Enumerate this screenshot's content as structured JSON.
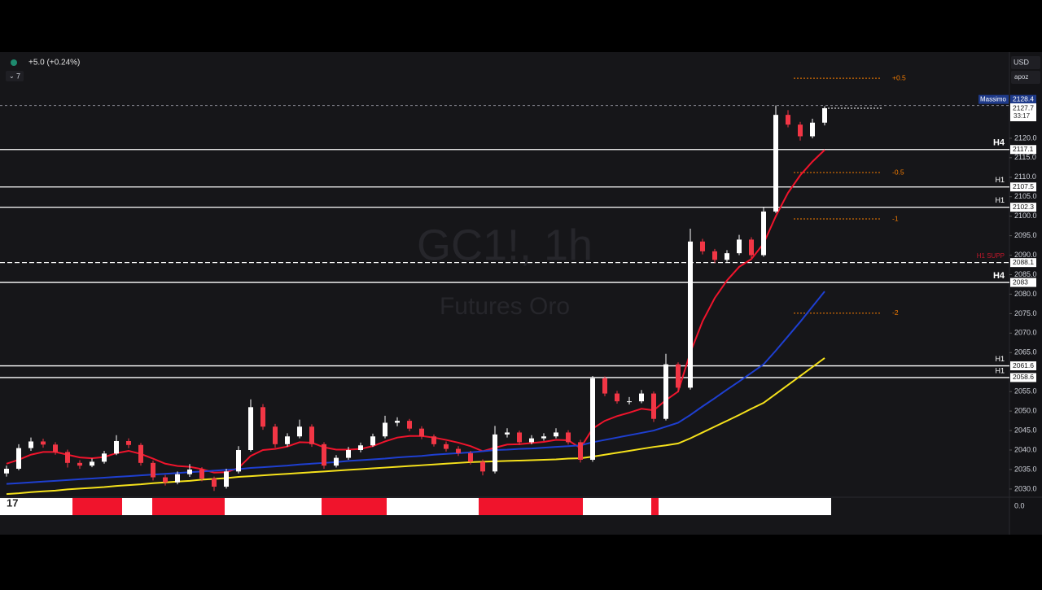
{
  "header": {
    "change": "+5.0 (+0.24%)",
    "interval_count": "7",
    "currency": "USD",
    "account": "apoz"
  },
  "chart_data": {
    "type": "candlestick",
    "title": "GC1!, 1h",
    "subtitle": "Futures Oro",
    "up_color": "#ffffff",
    "down_color": "#f23645",
    "ohlc": [
      [
        2034.0,
        2036.0,
        2033.2,
        2035.2
      ],
      [
        2035.2,
        2041.5,
        2034.8,
        2040.5
      ],
      [
        2040.5,
        2043.2,
        2039.8,
        2042.2
      ],
      [
        2042.2,
        2042.9,
        2040.6,
        2041.4
      ],
      [
        2041.4,
        2042.0,
        2038.8,
        2039.5
      ],
      [
        2039.5,
        2040.1,
        2035.5,
        2036.7
      ],
      [
        2036.7,
        2037.4,
        2035.2,
        2036.0
      ],
      [
        2036.0,
        2037.8,
        2035.6,
        2037.0
      ],
      [
        2037.0,
        2039.8,
        2036.5,
        2039.1
      ],
      [
        2039.1,
        2043.8,
        2038.7,
        2042.3
      ],
      [
        2042.3,
        2043.0,
        2040.5,
        2041.3
      ],
      [
        2041.3,
        2041.8,
        2036.0,
        2036.7
      ],
      [
        2036.7,
        2037.3,
        2032.2,
        2033.0
      ],
      [
        2033.0,
        2033.6,
        2030.9,
        2031.7
      ],
      [
        2031.7,
        2034.5,
        2031.2,
        2033.8
      ],
      [
        2033.8,
        2036.4,
        2033.1,
        2035.0
      ],
      [
        2035.0,
        2035.6,
        2032.0,
        2032.7
      ],
      [
        2032.7,
        2033.2,
        2029.5,
        2030.6
      ],
      [
        2030.6,
        2035.2,
        2030.1,
        2034.5
      ],
      [
        2034.5,
        2041.0,
        2034.0,
        2040.0
      ],
      [
        2040.0,
        2053.0,
        2039.6,
        2051.0
      ],
      [
        2051.0,
        2051.8,
        2045.2,
        2046.0
      ],
      [
        2046.0,
        2046.7,
        2040.6,
        2041.5
      ],
      [
        2041.5,
        2044.3,
        2040.9,
        2043.5
      ],
      [
        2043.5,
        2047.8,
        2043.0,
        2046.0
      ],
      [
        2046.0,
        2046.6,
        2040.8,
        2041.5
      ],
      [
        2041.5,
        2042.0,
        2035.2,
        2036.0
      ],
      [
        2036.0,
        2038.7,
        2035.5,
        2038.0
      ],
      [
        2038.0,
        2040.8,
        2037.5,
        2040.0
      ],
      [
        2040.0,
        2041.9,
        2039.4,
        2041.2
      ],
      [
        2041.2,
        2044.2,
        2040.8,
        2043.5
      ],
      [
        2043.5,
        2048.8,
        2043.0,
        2047.0
      ],
      [
        2047.0,
        2048.4,
        2046.1,
        2047.5
      ],
      [
        2047.5,
        2048.0,
        2044.8,
        2045.5
      ],
      [
        2045.5,
        2046.1,
        2042.8,
        2043.5
      ],
      [
        2043.5,
        2044.0,
        2040.9,
        2041.5
      ],
      [
        2041.5,
        2042.2,
        2039.6,
        2040.3
      ],
      [
        2040.3,
        2041.0,
        2038.5,
        2039.2
      ],
      [
        2039.2,
        2039.8,
        2036.3,
        2037.0
      ],
      [
        2037.0,
        2037.6,
        2033.5,
        2034.5
      ],
      [
        2034.5,
        2046.2,
        2034.0,
        2044.0
      ],
      [
        2044.0,
        2045.6,
        2043.2,
        2044.5
      ],
      [
        2044.5,
        2045.0,
        2041.3,
        2042.0
      ],
      [
        2042.0,
        2043.8,
        2041.5,
        2043.0
      ],
      [
        2043.0,
        2044.3,
        2042.4,
        2043.5
      ],
      [
        2043.5,
        2045.6,
        2043.0,
        2044.5
      ],
      [
        2044.5,
        2045.1,
        2041.4,
        2042.0
      ],
      [
        2042.0,
        2042.6,
        2036.8,
        2037.5
      ],
      [
        2037.5,
        2059.0,
        2037.0,
        2058.4
      ],
      [
        2058.4,
        2058.9,
        2053.8,
        2054.5
      ],
      [
        2054.5,
        2055.2,
        2051.9,
        2052.5
      ],
      [
        2052.5,
        2053.6,
        2051.7,
        2052.5
      ],
      [
        2052.5,
        2055.4,
        2052.0,
        2054.5
      ],
      [
        2054.5,
        2055.0,
        2047.2,
        2048.0
      ],
      [
        2048.0,
        2064.7,
        2047.6,
        2062.0
      ],
      [
        2062.0,
        2062.5,
        2054.8,
        2056.0
      ],
      [
        2056.0,
        2096.8,
        2055.5,
        2093.5
      ],
      [
        2093.5,
        2094.2,
        2090.2,
        2091.0
      ],
      [
        2091.0,
        2091.6,
        2088.0,
        2088.8
      ],
      [
        2088.8,
        2091.3,
        2088.3,
        2090.5
      ],
      [
        2090.5,
        2095.2,
        2090.0,
        2094.0
      ],
      [
        2094.0,
        2094.6,
        2089.2,
        2090.0
      ],
      [
        2090.0,
        2102.4,
        2089.6,
        2101.2
      ],
      [
        2101.2,
        2128.4,
        2100.8,
        2126.0
      ],
      [
        2126.0,
        2127.2,
        2122.8,
        2123.5
      ],
      [
        2123.5,
        2124.2,
        2119.4,
        2120.5
      ],
      [
        2120.5,
        2125.0,
        2120.0,
        2124.0
      ],
      [
        2124.0,
        2128.2,
        2123.3,
        2127.7
      ]
    ],
    "series": [
      {
        "color": "#f0142c",
        "values": [
          2036.5,
          2037.5,
          2038.8,
          2039.5,
          2039.5,
          2038.8,
          2038.1,
          2037.9,
          2038.2,
          2039.2,
          2039.8,
          2039.0,
          2037.8,
          2036.5,
          2035.9,
          2035.7,
          2035.1,
          2034.2,
          2034.3,
          2035.4,
          2038.5,
          2040.0,
          2040.3,
          2040.9,
          2042.0,
          2041.9,
          2040.7,
          2040.1,
          2040.1,
          2040.3,
          2041.0,
          2042.2,
          2043.2,
          2043.6,
          2043.6,
          2043.2,
          2042.6,
          2041.9,
          2041.0,
          2039.7,
          2040.6,
          2041.4,
          2041.5,
          2041.8,
          2042.1,
          2042.6,
          2042.5,
          2040.5,
          2045.5,
          2047.5,
          2048.7,
          2049.6,
          2050.6,
          2050.2,
          2052.8,
          2055.0,
          2065.0,
          2073.0,
          2079.0,
          2083.5,
          2087.0,
          2089.0,
          2093.0,
          2100.0,
          2106.0,
          2110.5,
          2114.0,
          2117.0
        ]
      },
      {
        "color": "#1e3fd0",
        "values": [
          2031.3,
          2031.5,
          2031.7,
          2031.9,
          2032.1,
          2032.3,
          2032.5,
          2032.7,
          2032.9,
          2033.1,
          2033.3,
          2033.5,
          2033.7,
          2033.9,
          2034.1,
          2034.3,
          2034.5,
          2034.7,
          2034.9,
          2035.1,
          2035.4,
          2035.6,
          2035.8,
          2036.0,
          2036.3,
          2036.5,
          2036.7,
          2036.9,
          2037.2,
          2037.4,
          2037.6,
          2037.8,
          2038.1,
          2038.3,
          2038.5,
          2038.8,
          2039.0,
          2039.2,
          2039.4,
          2039.7,
          2040.0,
          2040.1,
          2040.3,
          2040.4,
          2040.6,
          2040.8,
          2041.0,
          2041.2,
          2042.0,
          2042.6,
          2043.2,
          2043.8,
          2044.4,
          2045.0,
          2046.0,
          2047.0,
          2049.0,
          2051.2,
          2053.3,
          2055.5,
          2057.6,
          2059.8,
          2062.0,
          2065.5,
          2069.2,
          2072.9,
          2076.8,
          2080.7
        ]
      },
      {
        "color": "#f5e11b",
        "values": [
          2028.7,
          2028.9,
          2029.2,
          2029.4,
          2029.6,
          2029.9,
          2030.1,
          2030.3,
          2030.5,
          2030.8,
          2031.0,
          2031.2,
          2031.5,
          2031.7,
          2031.9,
          2032.1,
          2032.4,
          2032.6,
          2032.8,
          2033.1,
          2033.3,
          2033.5,
          2033.7,
          2033.9,
          2034.1,
          2034.3,
          2034.5,
          2034.7,
          2034.9,
          2035.1,
          2035.3,
          2035.5,
          2035.7,
          2035.9,
          2036.1,
          2036.3,
          2036.5,
          2036.7,
          2036.9,
          2037.0,
          2037.1,
          2037.2,
          2037.3,
          2037.4,
          2037.5,
          2037.6,
          2037.8,
          2037.9,
          2038.3,
          2038.8,
          2039.3,
          2039.8,
          2040.3,
          2040.8,
          2041.2,
          2041.7,
          2043.0,
          2044.5,
          2046.0,
          2047.5,
          2049.0,
          2050.6,
          2052.1,
          2054.4,
          2056.7,
          2059.0,
          2061.3,
          2063.6
        ]
      }
    ],
    "ylim": [
      2028.1,
      2141.9
    ],
    "yticks": [
      {
        "value": 2030,
        "label": "2030.0"
      },
      {
        "value": 2035,
        "label": "2035.0"
      },
      {
        "value": 2040,
        "label": "2040.0"
      },
      {
        "value": 2045,
        "label": "2045.0"
      },
      {
        "value": 2050,
        "label": "2050.0"
      },
      {
        "value": 2055,
        "label": "2055.0"
      },
      {
        "value": 2065,
        "label": "2065.0"
      },
      {
        "value": 2070,
        "label": "2070.0"
      },
      {
        "value": 2075,
        "label": "2075.0"
      },
      {
        "value": 2080,
        "label": "2080.0"
      },
      {
        "value": 2085,
        "label": "2085.0"
      },
      {
        "value": 2090,
        "label": "2090.0"
      },
      {
        "value": 2095,
        "label": "2095.0"
      },
      {
        "value": 2100,
        "label": "2100.0"
      },
      {
        "value": 2105,
        "label": "2105.0"
      },
      {
        "value": 2110,
        "label": "2110.0"
      },
      {
        "value": 2115,
        "label": "2115.0"
      },
      {
        "value": 2120,
        "label": "2120.0"
      }
    ],
    "levels": [
      {
        "value": 2117.1,
        "label": "H4"
      },
      {
        "value": 2107.5,
        "label": "H1"
      },
      {
        "value": 2102.3,
        "label": "H1"
      },
      {
        "value": 2088.1,
        "label": "H1 SUPP"
      },
      {
        "value": 2083.0,
        "label": "H4"
      },
      {
        "value": 2061.6,
        "label": "H1"
      },
      {
        "value": 2058.6,
        "label": "H1"
      }
    ],
    "high": {
      "value": 2128.4,
      "label": "Massimo"
    },
    "last_price": 2127.7,
    "countdown": "33:17",
    "fib_levels": [
      {
        "value": 2135.4,
        "label": "+0.5"
      },
      {
        "value": 2111.2,
        "label": "-0.5"
      },
      {
        "value": 2099.3,
        "label": "-1"
      },
      {
        "value": 2075.1,
        "label": "-2"
      }
    ],
    "oscillator_label": "0.0"
  }
}
